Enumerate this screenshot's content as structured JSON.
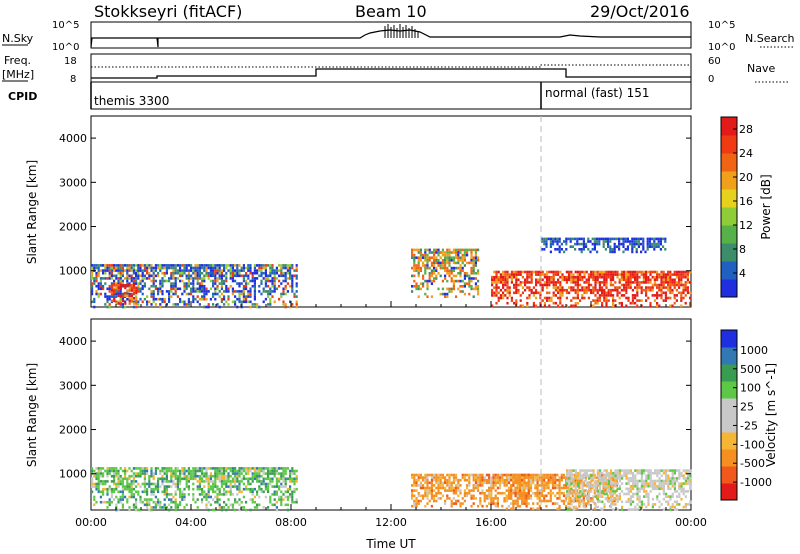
{
  "header": {
    "station": "Stokkseyri (fitACF)",
    "beam": "Beam 10",
    "date": "29/Oct/2016"
  },
  "panels": {
    "nsky": {
      "left_label": "N.Sky",
      "right_label": "N.Search",
      "left_ticks": [
        "10^5",
        "10^0"
      ],
      "right_ticks": [
        "10^5",
        "10^0"
      ]
    },
    "freq": {
      "left_label": "Freq.",
      "unit_label": "[MHz]",
      "right_label": "Nave",
      "left_ticks": [
        "18",
        "8"
      ],
      "right_ticks": [
        "60",
        "0"
      ]
    },
    "cpid": {
      "label": "CPID",
      "modes": [
        {
          "name": "themis 3300",
          "start_hour": 0
        },
        {
          "name": "normal (fast) 151",
          "start_hour": 18
        }
      ]
    }
  },
  "colors": {
    "power": [
      "#1f2fe0",
      "#2060c0",
      "#3d8c6a",
      "#55b148",
      "#8ecd38",
      "#e6d21c",
      "#f0a01a",
      "#f06414",
      "#f03a14",
      "#e31a1a"
    ],
    "velocity": [
      "#e31a1a",
      "#f0581c",
      "#f59020",
      "#f6b534",
      "#c8c8c8",
      "#c8c8c8",
      "#5cc845",
      "#3a9c50",
      "#3278b4",
      "#1f2fe0"
    ]
  },
  "chart_data": [
    {
      "type": "heatmap",
      "name": "power",
      "ylabel": "Slant Range [km]",
      "xlabel": "",
      "x_ticks": [
        "00:00",
        "04:00",
        "08:00",
        "12:00",
        "16:00",
        "20:00",
        "00:00"
      ],
      "xlim_hours": [
        0,
        24
      ],
      "y_ticks": [
        1000,
        2000,
        3000,
        4000
      ],
      "ylim": [
        180,
        4500
      ],
      "colorbar": {
        "label": "Power [dB]",
        "ticks": [
          4,
          8,
          12,
          16,
          20,
          24,
          28
        ],
        "range": [
          0,
          30
        ]
      },
      "regions": [
        {
          "t0": 0.0,
          "t1": 8.2,
          "r0": 180,
          "r1": 1150,
          "level": "low-mid"
        },
        {
          "t0": 0.8,
          "t1": 1.8,
          "r0": 250,
          "r1": 700,
          "level": "high"
        },
        {
          "t0": 12.8,
          "t1": 15.5,
          "r0": 400,
          "r1": 1500,
          "level": "mid-high"
        },
        {
          "t0": 16.0,
          "t1": 24.0,
          "r0": 180,
          "r1": 1000,
          "level": "high"
        },
        {
          "t0": 18.0,
          "t1": 23.0,
          "r0": 1450,
          "r1": 1750,
          "level": "low"
        }
      ]
    },
    {
      "type": "heatmap",
      "name": "velocity",
      "ylabel": "Slant Range [km]",
      "xlabel": "Time UT",
      "x_ticks": [
        "00:00",
        "04:00",
        "08:00",
        "12:00",
        "16:00",
        "20:00",
        "00:00"
      ],
      "xlim_hours": [
        0,
        24
      ],
      "y_ticks": [
        1000,
        2000,
        3000,
        4000
      ],
      "ylim": [
        180,
        4500
      ],
      "colorbar": {
        "label": "Velocity [m s^-1]",
        "ticks": [
          "1000",
          "500",
          "100",
          "25",
          "-25",
          "-100",
          "-500",
          "-1000"
        ]
      },
      "regions": [
        {
          "t0": 0.0,
          "t1": 8.2,
          "r0": 180,
          "r1": 1150,
          "level": "green"
        },
        {
          "t0": 12.8,
          "t1": 17.5,
          "r0": 250,
          "r1": 1000,
          "level": "orange"
        },
        {
          "t0": 16.5,
          "t1": 21.0,
          "r0": 180,
          "r1": 1000,
          "level": "orange"
        },
        {
          "t0": 19.0,
          "t1": 24.0,
          "r0": 180,
          "r1": 1100,
          "level": "gray"
        }
      ]
    }
  ]
}
